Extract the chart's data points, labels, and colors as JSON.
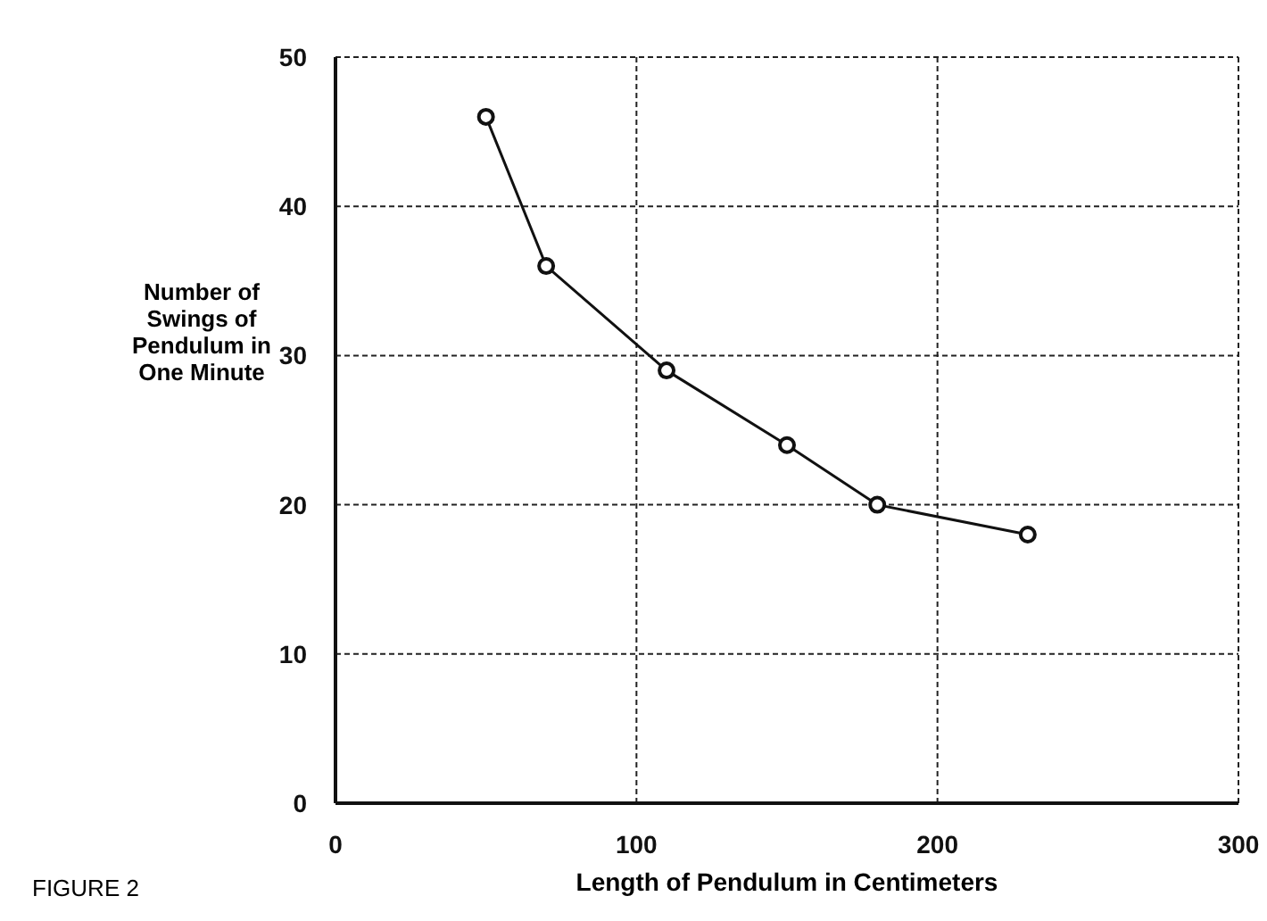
{
  "chart_data": {
    "type": "line",
    "xlabel": "Length of Pendulum in Centimeters",
    "ylabel": "Number of Swings of Pendulum in One Minute",
    "x": [
      50,
      70,
      110,
      150,
      180,
      230
    ],
    "series": [
      {
        "color": "#111111",
        "values": [
          46,
          36,
          29,
          24,
          20,
          18
        ]
      }
    ],
    "xlim": [
      0,
      300
    ],
    "xticks": [
      0,
      100,
      200,
      300
    ],
    "ylim": [
      0,
      50
    ],
    "yticks": [
      0,
      10,
      20,
      30,
      40,
      50
    ],
    "grid": true,
    "marker": "circle",
    "line_style": "solid",
    "annotations": [
      "FIGURE 2"
    ]
  }
}
